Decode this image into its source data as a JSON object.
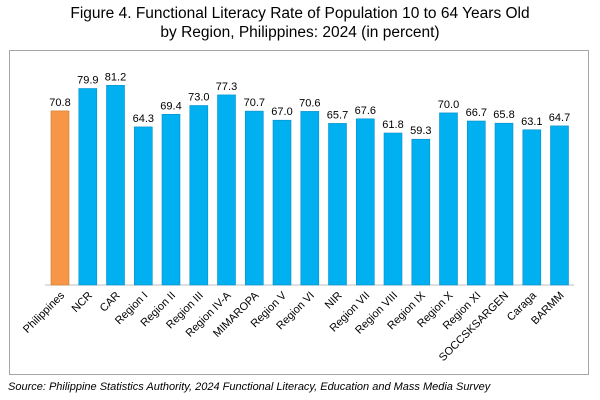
{
  "chart_data": {
    "type": "bar",
    "title_line1": "Figure 4.  Functional Literacy Rate of Population 10 to 64 Years Old",
    "title_line2": "by Region, Philippines: 2024 (in percent)",
    "categories": [
      "Philippines",
      "NCR",
      "CAR",
      "Region I",
      "Region II",
      "Region III",
      "Region IV-A",
      "MIMAROPA",
      "Region V",
      "Region VI",
      "NIR",
      "Region VII",
      "Region VIII",
      "Region IX",
      "Region X",
      "Region XI",
      "SOCCSKSARGEN",
      "Caraga",
      "BARMM"
    ],
    "values": [
      70.8,
      79.9,
      81.2,
      64.3,
      69.4,
      73.0,
      77.3,
      70.7,
      67.0,
      70.6,
      65.7,
      67.6,
      61.8,
      59.3,
      70.0,
      66.7,
      65.8,
      63.1,
      64.7
    ],
    "value_labels": [
      "70.8",
      "79.9",
      "81.2",
      "64.3",
      "69.4",
      "73.0",
      "77.3",
      "70.7",
      "67.0",
      "70.6",
      "65.7",
      "67.6",
      "61.8",
      "59.3",
      "70.0",
      "66.7",
      "65.8",
      "63.1",
      "64.7"
    ],
    "ylim": [
      0,
      100
    ],
    "xlabel": "",
    "ylabel": "",
    "highlight_index": 0,
    "colors": {
      "highlight": "#f79646",
      "bar": "#00b0f0",
      "highlight_stroke": "#c77a2a",
      "bar_stroke": "#0a8fc6"
    }
  },
  "source": "Source: Philippine Statistics Authority, 2024 Functional Literacy, Education and Mass Media Survey"
}
